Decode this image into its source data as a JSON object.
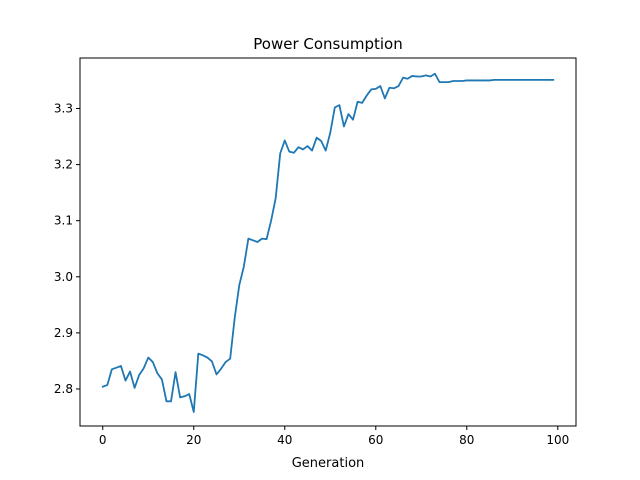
{
  "chart_data": {
    "type": "line",
    "title": "Power Consumption",
    "xlabel": "Generation",
    "ylabel": "",
    "xlim": [
      -5,
      104
    ],
    "ylim": [
      2.734,
      3.39
    ],
    "xticks": [
      0,
      20,
      40,
      60,
      80,
      100
    ],
    "yticks": [
      2.8,
      2.9,
      3.0,
      3.1,
      3.2,
      3.3
    ],
    "xtick_labels": [
      "0",
      "20",
      "40",
      "60",
      "80",
      "100"
    ],
    "ytick_labels": [
      "2.8",
      "2.9",
      "3.0",
      "3.1",
      "3.2",
      "3.3"
    ],
    "grid": false,
    "legend": "none",
    "series": [
      {
        "color": "#1f77b4",
        "x": [
          0,
          1,
          2,
          3,
          4,
          5,
          6,
          7,
          8,
          9,
          10,
          11,
          12,
          13,
          14,
          15,
          16,
          17,
          18,
          19,
          20,
          21,
          22,
          23,
          24,
          25,
          26,
          27,
          28,
          29,
          30,
          31,
          32,
          33,
          34,
          35,
          36,
          37,
          38,
          39,
          40,
          41,
          42,
          43,
          44,
          45,
          46,
          47,
          48,
          49,
          50,
          51,
          52,
          53,
          54,
          55,
          56,
          57,
          58,
          59,
          60,
          61,
          62,
          63,
          64,
          65,
          66,
          67,
          68,
          69,
          70,
          71,
          72,
          73,
          74,
          75,
          76,
          77,
          78,
          79,
          80,
          81,
          82,
          83,
          84,
          85,
          86,
          87,
          88,
          89,
          90,
          91,
          92,
          93,
          94,
          95,
          96,
          97,
          98,
          99
        ],
        "y": [
          2.804,
          2.807,
          2.835,
          2.838,
          2.841,
          2.815,
          2.831,
          2.802,
          2.825,
          2.837,
          2.856,
          2.848,
          2.828,
          2.817,
          2.778,
          2.778,
          2.83,
          2.785,
          2.787,
          2.791,
          2.759,
          2.863,
          2.86,
          2.856,
          2.849,
          2.826,
          2.836,
          2.848,
          2.854,
          2.927,
          2.985,
          3.018,
          3.068,
          3.065,
          3.062,
          3.068,
          3.067,
          3.1,
          3.14,
          3.22,
          3.243,
          3.223,
          3.221,
          3.231,
          3.227,
          3.233,
          3.225,
          3.248,
          3.242,
          3.225,
          3.257,
          3.302,
          3.306,
          3.268,
          3.29,
          3.28,
          3.312,
          3.31,
          3.323,
          3.334,
          3.335,
          3.34,
          3.318,
          3.337,
          3.336,
          3.34,
          3.355,
          3.353,
          3.358,
          3.357,
          3.357,
          3.359,
          3.357,
          3.362,
          3.347,
          3.347,
          3.347,
          3.349,
          3.349,
          3.349,
          3.35,
          3.35,
          3.35,
          3.35,
          3.35,
          3.35,
          3.351,
          3.351,
          3.351,
          3.351,
          3.351,
          3.351,
          3.351,
          3.351,
          3.351,
          3.351,
          3.351,
          3.351,
          3.351,
          3.351
        ]
      }
    ]
  }
}
